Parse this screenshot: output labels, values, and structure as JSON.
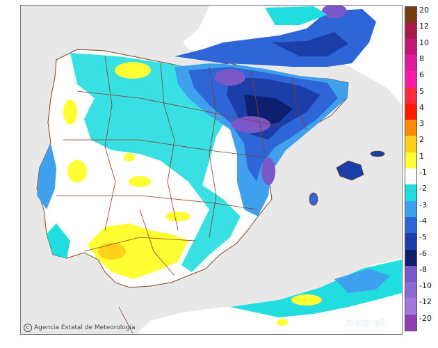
{
  "credit_text": "Agencia Estatal de Meteorología",
  "logo_text": "aemet",
  "legend": {
    "ticks": [
      "20",
      "12",
      "10",
      "8",
      "6",
      "5",
      "4",
      "3",
      "2",
      "1",
      "-1",
      "-2",
      "-3",
      "-4",
      "-5",
      "-6",
      "-8",
      "-10",
      "-12",
      "-20"
    ],
    "bins": [
      {
        "color": "#7a3b0c"
      },
      {
        "color": "#a8184a"
      },
      {
        "color": "#c51577"
      },
      {
        "color": "#e01aa0"
      },
      {
        "color": "#ff1aa8"
      },
      {
        "color": "#ff2a3c"
      },
      {
        "color": "#ff1a00"
      },
      {
        "color": "#ff8c00"
      },
      {
        "color": "#ffd21a"
      },
      {
        "color": "#ffff33"
      },
      {
        "color": "#ffffff"
      },
      {
        "color": "#22dde0"
      },
      {
        "color": "#3fa0ee"
      },
      {
        "color": "#2e66d8"
      },
      {
        "color": "#1b3ea8"
      },
      {
        "color": "#0e1f70"
      },
      {
        "color": "#7a58c8"
      },
      {
        "color": "#8f6ad6"
      },
      {
        "color": "#a079dc"
      },
      {
        "color": "#8c3fb0"
      }
    ]
  }
}
